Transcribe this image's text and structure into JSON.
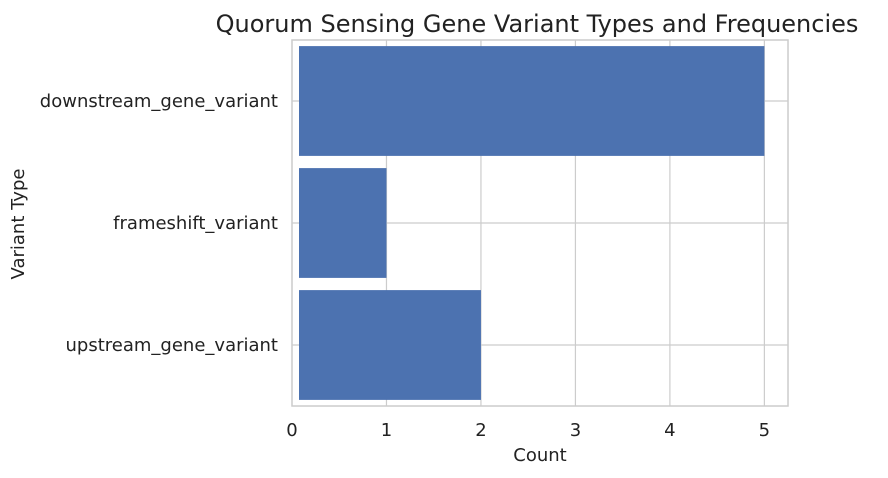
{
  "chart_data": {
    "type": "bar",
    "orientation": "horizontal",
    "title": "Quorum Sensing Gene Variant Types and Frequencies",
    "xlabel": "Count",
    "ylabel": "Variant Type",
    "categories": [
      "downstream_gene_variant",
      "frameshift_variant",
      "upstream_gene_variant"
    ],
    "values": [
      5,
      1,
      2
    ],
    "xlim": [
      0,
      5.25
    ],
    "xticks": [
      0,
      1,
      2,
      3,
      4,
      5
    ],
    "grid": true,
    "bar_color": "#4c72b0",
    "grid_color": "#cccccc"
  }
}
